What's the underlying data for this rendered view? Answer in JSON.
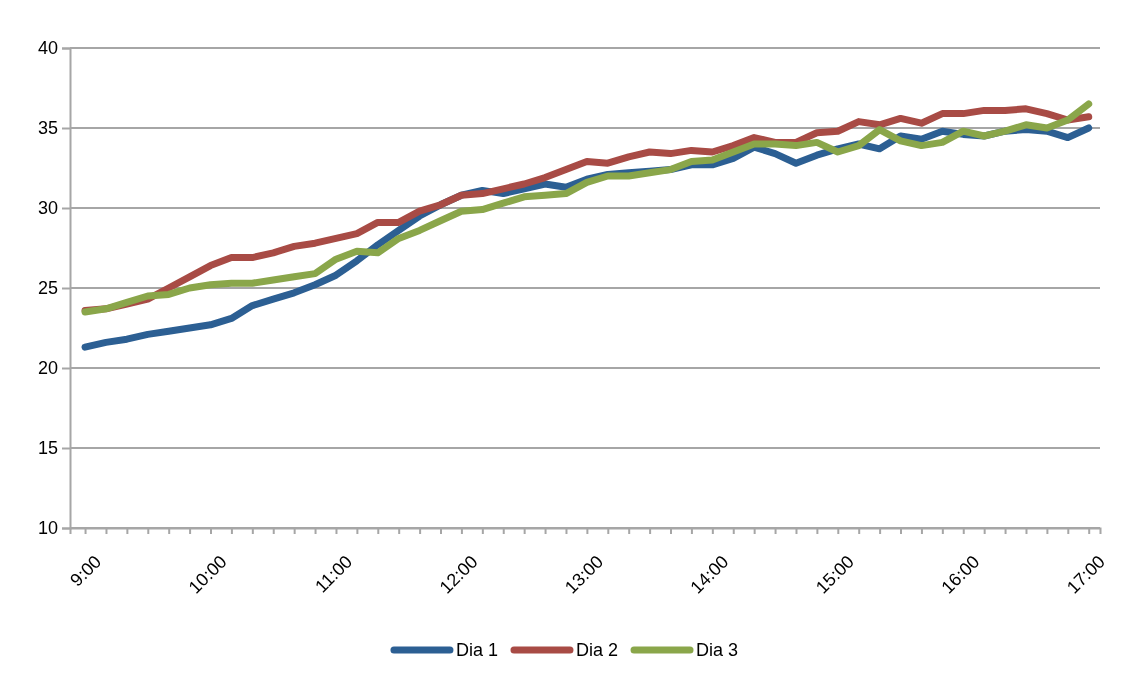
{
  "chart_data": {
    "type": "line",
    "xlim": [
      8.88,
      17.09
    ],
    "ylim": [
      10,
      40
    ],
    "yticks": [
      10,
      15,
      20,
      25,
      30,
      35,
      40
    ],
    "xticks": [
      {
        "value": 9,
        "label": "9:00"
      },
      {
        "value": 9.1667,
        "label": null
      },
      {
        "value": 9.3333,
        "label": null
      },
      {
        "value": 9.5,
        "label": null
      },
      {
        "value": 9.6667,
        "label": null
      },
      {
        "value": 9.8333,
        "label": null
      },
      {
        "value": 10,
        "label": "10:00"
      },
      {
        "value": 10.1667,
        "label": null
      },
      {
        "value": 10.3333,
        "label": null
      },
      {
        "value": 10.5,
        "label": null
      },
      {
        "value": 10.6667,
        "label": null
      },
      {
        "value": 10.8333,
        "label": null
      },
      {
        "value": 11,
        "label": "11:00"
      },
      {
        "value": 11.1667,
        "label": null
      },
      {
        "value": 11.3333,
        "label": null
      },
      {
        "value": 11.5,
        "label": null
      },
      {
        "value": 11.6667,
        "label": null
      },
      {
        "value": 11.8333,
        "label": null
      },
      {
        "value": 12,
        "label": "12:00"
      },
      {
        "value": 12.1667,
        "label": null
      },
      {
        "value": 12.3333,
        "label": null
      },
      {
        "value": 12.5,
        "label": null
      },
      {
        "value": 12.6667,
        "label": null
      },
      {
        "value": 12.8333,
        "label": null
      },
      {
        "value": 13,
        "label": "13:00"
      },
      {
        "value": 13.1667,
        "label": null
      },
      {
        "value": 13.3333,
        "label": null
      },
      {
        "value": 13.5,
        "label": null
      },
      {
        "value": 13.6667,
        "label": null
      },
      {
        "value": 13.8333,
        "label": null
      },
      {
        "value": 14,
        "label": "14:00"
      },
      {
        "value": 14.1667,
        "label": null
      },
      {
        "value": 14.3333,
        "label": null
      },
      {
        "value": 14.5,
        "label": null
      },
      {
        "value": 14.6667,
        "label": null
      },
      {
        "value": 14.8333,
        "label": null
      },
      {
        "value": 15,
        "label": "15:00"
      },
      {
        "value": 15.1667,
        "label": null
      },
      {
        "value": 15.3333,
        "label": null
      },
      {
        "value": 15.5,
        "label": null
      },
      {
        "value": 15.6667,
        "label": null
      },
      {
        "value": 15.8333,
        "label": null
      },
      {
        "value": 16,
        "label": "16:00"
      },
      {
        "value": 16.1667,
        "label": null
      },
      {
        "value": 16.3333,
        "label": null
      },
      {
        "value": 16.5,
        "label": null
      },
      {
        "value": 16.6667,
        "label": null
      },
      {
        "value": 16.8333,
        "label": null
      },
      {
        "value": 17,
        "label": "17:00"
      }
    ],
    "x": [
      9,
      9.1667,
      9.3333,
      9.5,
      9.6667,
      9.8333,
      10,
      10.1667,
      10.3333,
      10.5,
      10.6667,
      10.8333,
      11,
      11.1667,
      11.3333,
      11.5,
      11.6667,
      11.8333,
      12,
      12.1667,
      12.3333,
      12.5,
      12.6667,
      12.8333,
      13,
      13.1667,
      13.3333,
      13.5,
      13.6667,
      13.8333,
      14,
      14.1667,
      14.3333,
      14.5,
      14.6667,
      14.8333,
      15,
      15.1667,
      15.3333,
      15.5,
      15.6667,
      15.8333,
      16,
      16.1667,
      16.3333,
      16.5,
      16.6667,
      16.8333,
      17
    ],
    "grid": "y",
    "legend": "bottom",
    "marker": "none",
    "line_style": "solid",
    "series": [
      {
        "name": "Dia 1",
        "color": "#2c5f93",
        "values": [
          21.3,
          21.6,
          21.8,
          22.1,
          22.3,
          22.5,
          22.7,
          23.1,
          23.9,
          24.3,
          24.7,
          25.2,
          25.8,
          26.7,
          27.7,
          28.6,
          29.5,
          30.2,
          30.8,
          31.1,
          30.9,
          31.2,
          31.5,
          31.3,
          31.8,
          32.1,
          32.2,
          32.3,
          32.4,
          32.7,
          32.7,
          33.1,
          33.8,
          33.4,
          32.8,
          33.3,
          33.7,
          34.0,
          33.7,
          34.5,
          34.3,
          34.8,
          34.6,
          34.5,
          34.8,
          34.9,
          34.8,
          34.4,
          35.0
        ]
      },
      {
        "name": "Dia 2",
        "color": "#a84b45",
        "values": [
          23.6,
          23.7,
          24.0,
          24.3,
          25.0,
          25.7,
          26.4,
          26.9,
          26.9,
          27.2,
          27.6,
          27.8,
          28.1,
          28.4,
          29.1,
          29.1,
          29.8,
          30.2,
          30.8,
          30.9,
          31.2,
          31.5,
          31.9,
          32.4,
          32.9,
          32.8,
          33.2,
          33.5,
          33.4,
          33.6,
          33.5,
          33.9,
          34.4,
          34.1,
          34.1,
          34.7,
          34.8,
          35.4,
          35.2,
          35.6,
          35.3,
          35.9,
          35.9,
          36.1,
          36.1,
          36.2,
          35.9,
          35.5,
          35.7
        ]
      },
      {
        "name": "Dia 3",
        "color": "#8aa64a",
        "values": [
          23.5,
          23.7,
          24.1,
          24.5,
          24.6,
          25.0,
          25.2,
          25.3,
          25.3,
          25.5,
          25.7,
          25.9,
          26.8,
          27.3,
          27.2,
          28.1,
          28.6,
          29.2,
          29.8,
          29.9,
          30.3,
          30.7,
          30.8,
          30.9,
          31.6,
          32.0,
          32.0,
          32.2,
          32.4,
          32.9,
          33.0,
          33.5,
          34.0,
          34.0,
          33.9,
          34.1,
          33.5,
          33.9,
          34.9,
          34.2,
          33.9,
          34.1,
          34.8,
          34.5,
          34.8,
          35.2,
          35.0,
          35.5,
          36.5
        ]
      }
    ]
  }
}
